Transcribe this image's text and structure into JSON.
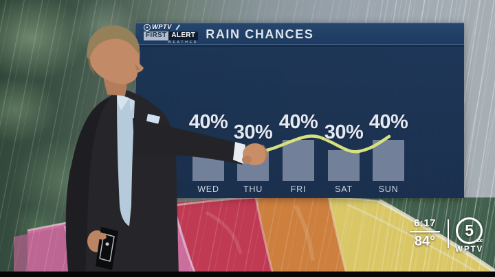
{
  "broadcast": {
    "title": "RAIN CHANCES",
    "station_logo": {
      "brand": "WPTV",
      "first": "FIRST",
      "alert": "ALERT",
      "weather": "WEATHER"
    }
  },
  "chart_data": {
    "type": "bar",
    "title": "RAIN CHANCES",
    "categories": [
      "WED",
      "THU",
      "FRI",
      "SAT",
      "SUN"
    ],
    "values": [
      40,
      30,
      40,
      30,
      40
    ],
    "value_labels": [
      "40%",
      "30%",
      "40%",
      "30%",
      "40%"
    ],
    "unit": "%",
    "ylim": [
      0,
      100
    ],
    "gridlines": false,
    "legend": "none",
    "bar_color": "#72809a",
    "trend_line_color": "#d6e07c",
    "panel_color": "#1b3557",
    "value_label_color": "#e3e8f1"
  },
  "status_overlay": {
    "time": "6:17",
    "temperature": "84°",
    "channel_number": "5",
    "network": "abc",
    "station": "WPTV"
  },
  "scene": {
    "umbrella_colors": [
      "#cb6d9d",
      "#bf3a52",
      "#cd7f3e",
      "#d9c766",
      "#4a6a55"
    ]
  }
}
